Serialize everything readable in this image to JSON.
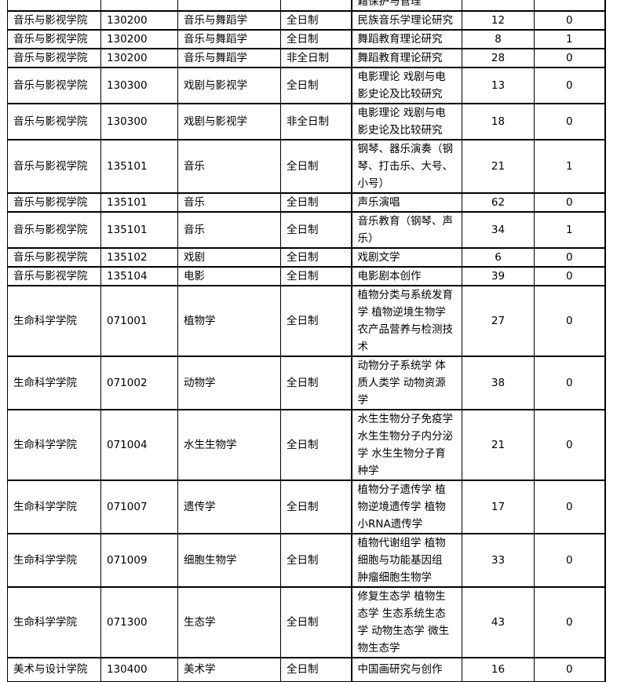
{
  "rows": [
    {
      "college": "",
      "code": "",
      "major": "",
      "type": "",
      "direction": "籍保护与管理",
      "plan": "",
      "extra": ""
    },
    {
      "college": "音乐与影视学院",
      "code": "130200",
      "major": "音乐与舞蹈学",
      "type": "全日制",
      "direction": "民族音乐学理论研究",
      "plan": "12",
      "extra": "0"
    },
    {
      "college": "音乐与影视学院",
      "code": "130200",
      "major": "音乐与舞蹈学",
      "type": "全日制",
      "direction": "舞蹈教育理论研究",
      "plan": "8",
      "extra": "1"
    },
    {
      "college": "音乐与影视学院",
      "code": "130200",
      "major": "音乐与舞蹈学",
      "type": "非全日制",
      "direction": "舞蹈教育理论研究",
      "plan": "28",
      "extra": "0"
    },
    {
      "college": "音乐与影视学院",
      "code": "130300",
      "major": "戏剧与影视学",
      "type": "全日制",
      "direction": "电影理论 戏剧与电影史论及比较研究",
      "plan": "13",
      "extra": "0"
    },
    {
      "college": "音乐与影视学院",
      "code": "130300",
      "major": "戏剧与影视学",
      "type": "非全日制",
      "direction": "电影理论 戏剧与电影史论及比较研究",
      "plan": "18",
      "extra": "0"
    },
    {
      "college": "音乐与影视学院",
      "code": "135101",
      "major": "音乐",
      "type": "全日制",
      "direction": "钢琴、器乐演奏（钢琴、打击乐、大号、小号）",
      "plan": "21",
      "extra": "1"
    },
    {
      "college": "音乐与影视学院",
      "code": "135101",
      "major": "音乐",
      "type": "全日制",
      "direction": "声乐演唱",
      "plan": "62",
      "extra": "0"
    },
    {
      "college": "音乐与影视学院",
      "code": "135101",
      "major": "音乐",
      "type": "全日制",
      "direction": "音乐教育（钢琴、声乐）",
      "plan": "34",
      "extra": "1"
    },
    {
      "college": "音乐与影视学院",
      "code": "135102",
      "major": "戏剧",
      "type": "全日制",
      "direction": "戏剧文学",
      "plan": "6",
      "extra": "0"
    },
    {
      "college": "音乐与影视学院",
      "code": "135104",
      "major": "电影",
      "type": "全日制",
      "direction": "电影剧本创作",
      "plan": "39",
      "extra": "0"
    },
    {
      "college": "生命科学学院",
      "code": "071001",
      "major": "植物学",
      "type": "全日制",
      "direction": "植物分类与系统发育学 植物逆境生物学 农产品营养与检测技术",
      "plan": "27",
      "extra": "0"
    },
    {
      "college": "生命科学学院",
      "code": "071002",
      "major": "动物学",
      "type": "全日制",
      "direction": "动物分子系统学 体质人类学 动物资源学",
      "plan": "38",
      "extra": "0"
    },
    {
      "college": "生命科学学院",
      "code": "071004",
      "major": "水生生物学",
      "type": "全日制",
      "direction": "水生生物分子免疫学 水生生物分子内分泌学 水生生物分子育种学",
      "plan": "21",
      "extra": "0"
    },
    {
      "college": "生命科学学院",
      "code": "071007",
      "major": "遗传学",
      "type": "全日制",
      "direction": "植物分子遗传学 植物逆境遗传学 植物小RNA遗传学",
      "plan": "17",
      "extra": "0"
    },
    {
      "college": "生命科学学院",
      "code": "071009",
      "major": "细胞生物学",
      "type": "全日制",
      "direction": "植物代谢组学 植物细胞与功能基因组 肿瘤细胞生物学",
      "plan": "33",
      "extra": "0"
    },
    {
      "college": "生命科学学院",
      "code": "071300",
      "major": "生态学",
      "type": "全日制",
      "direction": "修复生态学 植物生态学 生态系统生态学 动物生态学 微生物生态学",
      "plan": "43",
      "extra": "0"
    },
    {
      "college": "美术与设计学院",
      "code": "130400",
      "major": "美术学",
      "type": "全日制",
      "direction": "中国画研究与创作",
      "plan": "16",
      "extra": "0"
    }
  ]
}
